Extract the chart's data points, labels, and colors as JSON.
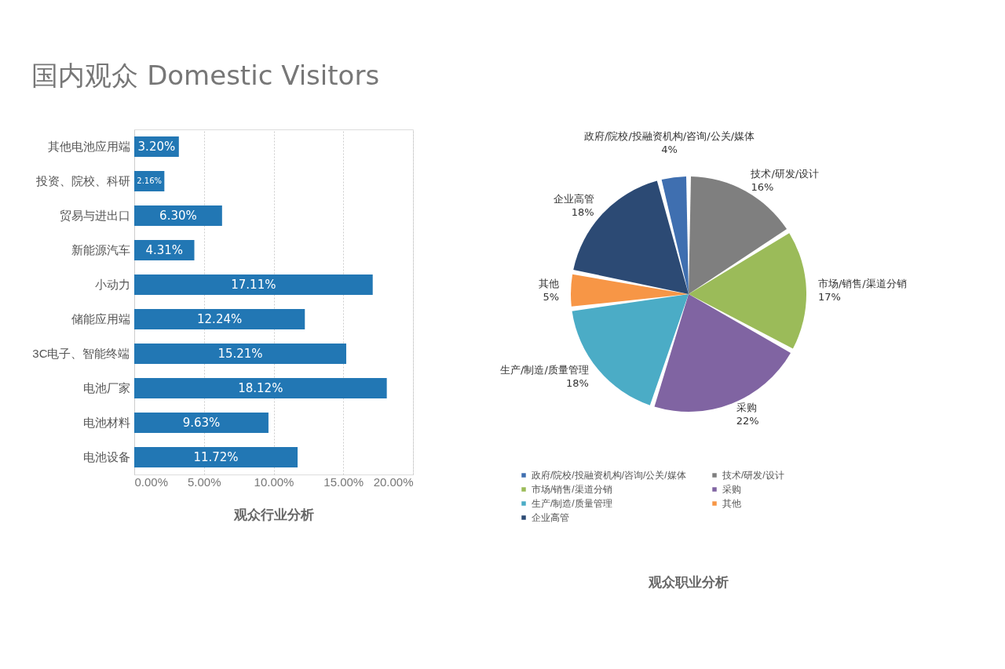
{
  "chart_data": [
    {
      "type": "bar",
      "orientation": "horizontal",
      "title": "国内观众 Domestic Visitors",
      "xlabel": "观众行业分析",
      "categories": [
        "其他电池应用端",
        "投资、院校、科研",
        "贸易与进出口",
        "新能源汽车",
        "小动力",
        "储能应用端",
        "3C电子、智能终端",
        "电池厂家",
        "电池材料",
        "电池设备"
      ],
      "values": [
        3.2,
        2.16,
        6.3,
        4.31,
        17.11,
        12.24,
        15.21,
        18.12,
        9.63,
        11.72
      ],
      "value_labels": [
        "3.20%",
        "2.16%",
        "6.30%",
        "4.31%",
        "17.11%",
        "12.24%",
        "15.21%",
        "18.12%",
        "9.63%",
        "11.72%"
      ],
      "color": "#2277b4",
      "xlim": [
        0,
        20
      ],
      "xticks": [
        {
          "value": 0,
          "label": "0.00%"
        },
        {
          "value": 5,
          "label": "5.00%"
        },
        {
          "value": 10,
          "label": "10.00%"
        },
        {
          "value": 15,
          "label": "15.00%"
        },
        {
          "value": 20,
          "label": "20.00%"
        }
      ],
      "grid": "x",
      "legend": false
    },
    {
      "type": "pie",
      "title": "观众职业分析",
      "categories": [
        "政府/院校/投融资机构/咨询/公关/媒体",
        "技术/研发/设计",
        "市场/销售/渠道分销",
        "采购",
        "生产/制造/质量管理",
        "其他",
        "企业高管"
      ],
      "values": [
        4,
        16,
        17,
        22,
        18,
        5,
        18
      ],
      "colors": [
        "#3f6fb0",
        "#7f7f7f",
        "#9bbb59",
        "#8064a2",
        "#4bacc6",
        "#f79646",
        "#2c4a74"
      ],
      "value_labels": [
        "4%",
        "16%",
        "17%",
        "22%",
        "18%",
        "5%",
        "18%"
      ],
      "legend": "bottom"
    }
  ]
}
